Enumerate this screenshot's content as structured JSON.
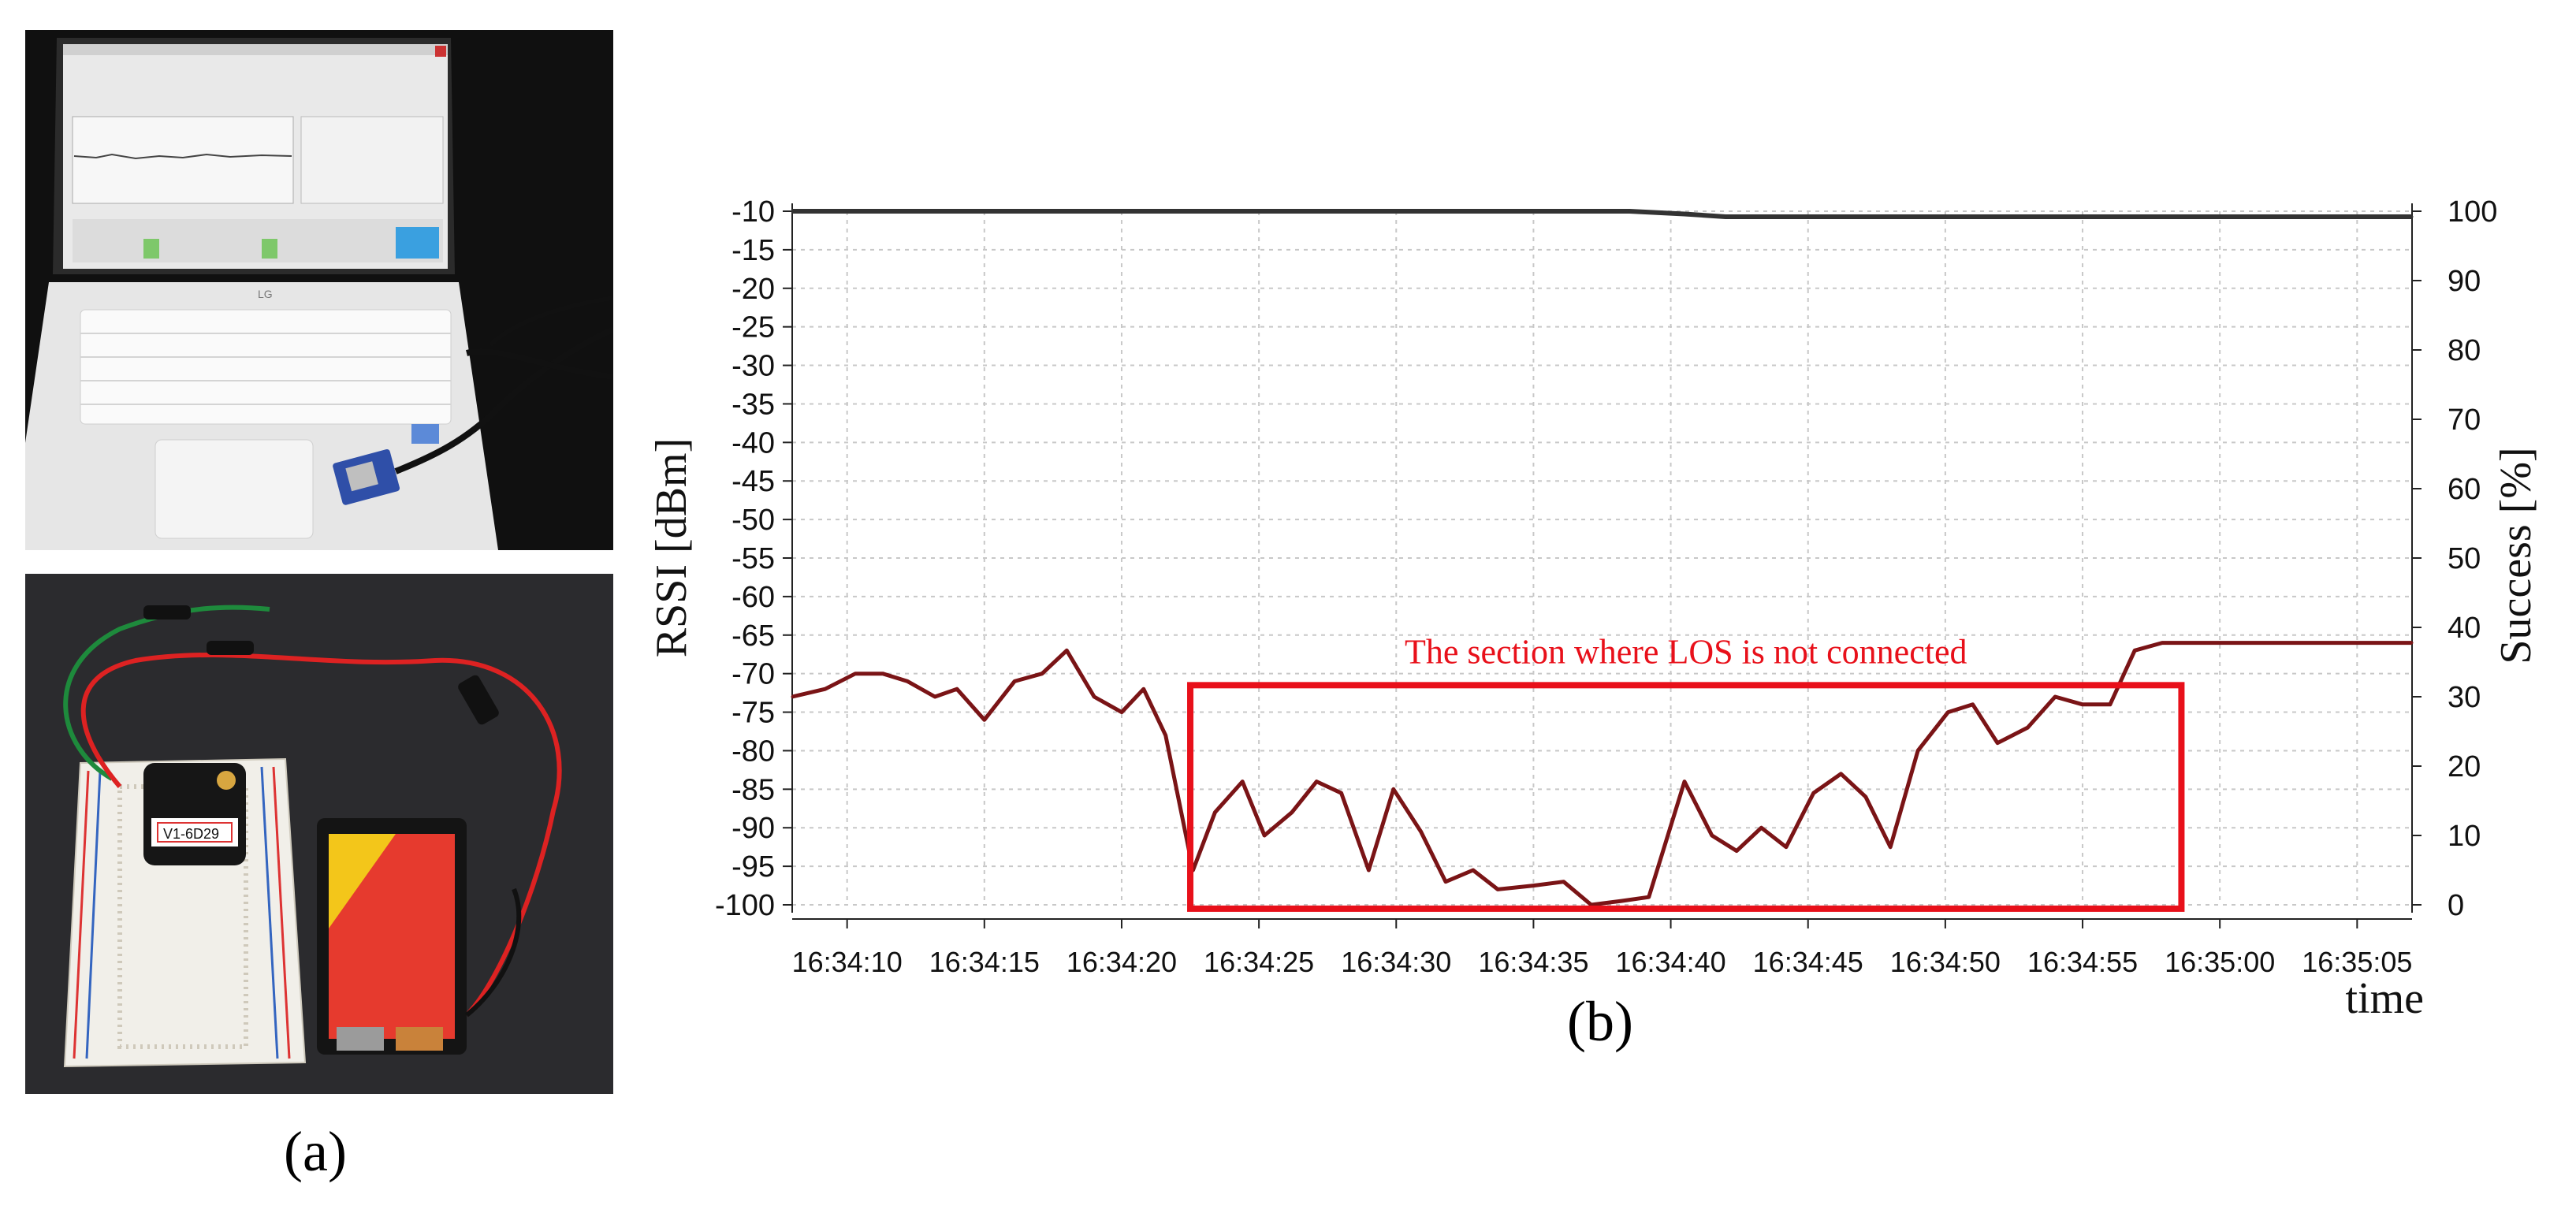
{
  "captions": {
    "a": "(a)",
    "b": "(b)"
  },
  "photos": {
    "top": "laptop-with-plot-and-sensor-photo",
    "bottom": "breadboard-with-bluetooth-module-and-battery-photo",
    "label_text": "V1-6D29",
    "laptop_brand": "LG"
  },
  "chart_data": {
    "type": "line",
    "xlabel": "time",
    "ylabel": "RSSI [dBm]",
    "ylabel_right": "Success [%]",
    "ylim": [
      -100,
      -10
    ],
    "ylim_right": [
      0,
      100
    ],
    "yticks": [
      -10,
      -15,
      -20,
      -25,
      -30,
      -35,
      -40,
      -45,
      -50,
      -55,
      -60,
      -65,
      -70,
      -75,
      -80,
      -85,
      -90,
      -95,
      -100
    ],
    "yticks_right": [
      100,
      90,
      80,
      70,
      60,
      50,
      40,
      30,
      20,
      10,
      0
    ],
    "xticks": [
      "16:34:10",
      "16:34:15",
      "16:34:20",
      "16:34:25",
      "16:34:30",
      "16:34:35",
      "16:34:40",
      "16:34:45",
      "16:34:50",
      "16:34:55",
      "16:35:00",
      "16:35:05"
    ],
    "grid": true,
    "x_unit": "seconds from 16:34:10",
    "series": [
      {
        "name": "RSSI",
        "axis": "left",
        "color": "#7a1416",
        "x": [
          -2,
          -0.8,
          0.3,
          1.3,
          2.2,
          3.2,
          4.0,
          5.0,
          6.1,
          7.1,
          8.0,
          9.0,
          10.0,
          10.8,
          11.6,
          12.6,
          13.4,
          14.4,
          15.2,
          16.2,
          17.1,
          18.0,
          19.0,
          19.9,
          20.9,
          21.8,
          22.8,
          23.7,
          25.0,
          26.1,
          27.1,
          28.2,
          29.2,
          30.5,
          31.5,
          32.4,
          33.3,
          34.2,
          35.2,
          36.2,
          37.1,
          38.0,
          39.0,
          40.1,
          41.0,
          41.9,
          43.0,
          44.0,
          45.0,
          46.0,
          46.9,
          47.9,
          48.9,
          49.9,
          51.0,
          52.0,
          53.0,
          54.0,
          55.0,
          56.0,
          57.0
        ],
        "y": [
          -73,
          -72,
          -70,
          -70,
          -71,
          -73,
          -72,
          -76,
          -71,
          -70,
          -67,
          -73,
          -75,
          -72,
          -78,
          -95.5,
          -88,
          -84,
          -91,
          -88,
          -84,
          -85.5,
          -95.5,
          -85,
          -90.5,
          -97,
          -95.5,
          -98,
          -97.5,
          -97,
          -100,
          -99.5,
          -99,
          -84,
          -91,
          -93,
          -90,
          -92.5,
          -85.5,
          -83,
          -86,
          -92.5,
          -80,
          -75,
          -74,
          -79,
          -77,
          -73,
          -74,
          -74,
          -67,
          -66,
          -66,
          -66,
          -66,
          -66,
          -66,
          -66,
          -66,
          -66,
          -66
        ]
      },
      {
        "name": "Success",
        "axis": "right",
        "color": "#333333",
        "x": [
          -2,
          28.5,
          30.5,
          32,
          57
        ],
        "y": [
          100,
          100,
          99.6,
          99.2,
          99.2
        ]
      }
    ],
    "annotation": {
      "text": "The section where LOS is not connected",
      "box_x": [
        12.5,
        48.6
      ],
      "box_y": [
        -100.5,
        -71.5
      ]
    }
  }
}
